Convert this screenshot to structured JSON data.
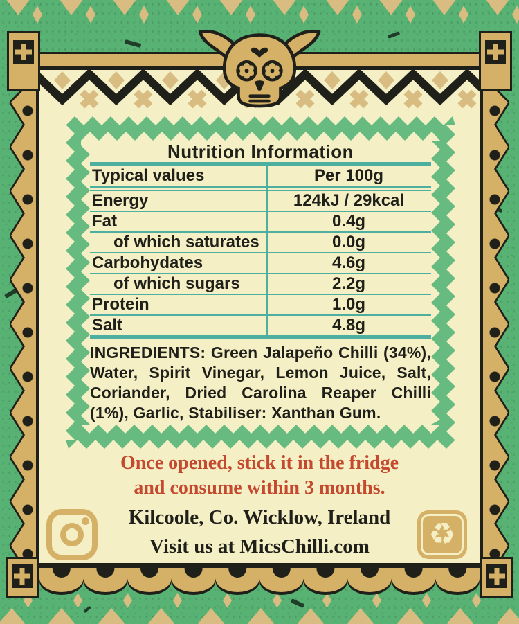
{
  "label": {
    "nutrition": {
      "title": "Nutrition Information",
      "header": {
        "col1": "Typical values",
        "col2": "Per 100g"
      },
      "rows": [
        {
          "label": "Energy",
          "value": "124kJ / 29kcal"
        },
        {
          "label": "Fat",
          "value": "0.4g"
        },
        {
          "label": "of which saturates",
          "value": "0.0g"
        },
        {
          "label": "Carbohydates",
          "value": "4.6g"
        },
        {
          "label": "of which sugars",
          "value": "2.2g"
        },
        {
          "label": "Protein",
          "value": "1.0g"
        },
        {
          "label": "Salt",
          "value": "4.8g"
        }
      ]
    },
    "ingredients": {
      "label": "INGREDIENTS:",
      "text": " Green Jalapeño Chilli (34%), Water, Spirit Vinegar, Lemon Juice, Salt, Coriander, Dried Carolina Reaper Chilli (1%), Garlic, Stabiliser: Xanthan Gum."
    },
    "storage_note": {
      "line1": "Once opened, stick it in the fridge",
      "line2": "and consume within 3 months."
    },
    "address": "Kilcoole, Co. Wicklow, Ireland",
    "website": "Visit us at MicsChilli.com",
    "icons": {
      "instagram": "instagram-icon",
      "recycle": "recycle-icon",
      "recycle_glyph": "♻︎"
    },
    "colors": {
      "background_green": "#58b274",
      "stamp_green": "#68bb80",
      "cream": "#f4efc5",
      "gold": "#d5b067",
      "tan": "#d8bc82",
      "teal_line": "#4daf9f",
      "text_black": "#20201a",
      "accent_red": "#c4492e"
    }
  }
}
